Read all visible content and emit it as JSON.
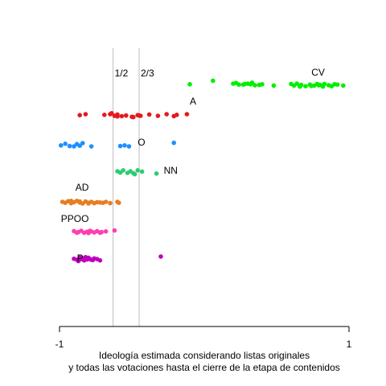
{
  "chart_data": {
    "type": "scatter",
    "title": "",
    "xlabel_lines": [
      "Ideología estimada considerando listas originales",
      "y todas las votaciones hasta el cierre de la etapa de contenidos"
    ],
    "ylabel": "",
    "xlim": [
      -1,
      1
    ],
    "x_ticks": [
      -1,
      1
    ],
    "x_tick_labels": [
      "-1",
      "1"
    ],
    "grid": false,
    "reference_lines": [
      {
        "x": -0.63,
        "label": "1/2",
        "color": "#bebebe"
      },
      {
        "x": -0.45,
        "label": "2/3",
        "color": "#bebebe"
      }
    ],
    "series": [
      {
        "name": "CV",
        "color": "#00ee00",
        "label_x": 0.74,
        "values": [
          -0.1,
          0.06,
          0.2,
          0.24,
          0.22,
          0.28,
          0.27,
          0.32,
          0.3,
          0.35,
          0.33,
          0.38,
          0.4,
          0.48,
          0.62,
          0.6,
          0.66,
          0.64,
          0.7,
          0.67,
          0.73,
          0.76,
          0.8,
          0.78,
          0.83,
          0.86,
          0.9,
          0.82,
          0.88,
          0.92,
          0.96,
          0.74,
          0.79
        ],
        "jitter": [
          0.2,
          -0.9,
          0.0,
          0.3,
          -0.2,
          0.1,
          0.3,
          0.2,
          0.0,
          0.5,
          -0.3,
          0.4,
          0.2,
          0.6,
          0.6,
          0.1,
          0.9,
          0.0,
          0.8,
          0.4,
          0.3,
          0.6,
          0.4,
          0.1,
          0.1,
          0.5,
          0.2,
          0.9,
          0.8,
          0.3,
          0.6,
          0.7,
          0.5
        ]
      },
      {
        "name": "A",
        "color": "#e41a1c",
        "label_x": -0.1,
        "values": [
          -0.86,
          -0.82,
          -0.69,
          -0.65,
          -0.62,
          -0.6,
          -0.57,
          -0.54,
          -0.64,
          -0.6,
          -0.5,
          -0.46,
          -0.44,
          -0.49,
          -0.38,
          -0.32,
          -0.26,
          -0.21,
          -0.19,
          -0.12,
          -0.45
        ],
        "jitter": [
          0.3,
          0.0,
          0.2,
          0.0,
          0.5,
          0.1,
          0.6,
          0.4,
          -0.3,
          0.7,
          0.8,
          0.3,
          0.5,
          0.9,
          0.1,
          0.5,
          0.0,
          0.6,
          0.2,
          0.0,
          0.4
        ]
      },
      {
        "name": "O",
        "color": "#1e90ff",
        "label_x": -0.46,
        "values": [
          -0.99,
          -0.96,
          -0.93,
          -0.88,
          -0.9,
          -0.86,
          -0.84,
          -0.78,
          -0.58,
          -0.55,
          -0.52,
          -0.21
        ],
        "jitter": [
          0.2,
          -0.3,
          0.4,
          -0.2,
          0.5,
          0.3,
          -0.5,
          0.5,
          0.4,
          0.2,
          0.5,
          -0.6
        ]
      },
      {
        "name": "NN",
        "color": "#2ecc71",
        "label_x": -0.28,
        "values": [
          -0.6,
          -0.56,
          -0.58,
          -0.53,
          -0.51,
          -0.49,
          -0.46,
          -0.43,
          -0.33,
          -0.48
        ],
        "jitter": [
          0.0,
          -0.3,
          0.4,
          0.5,
          0.0,
          0.6,
          -0.3,
          0.1,
          0.7,
          0.9
        ]
      },
      {
        "name": "AD",
        "color": "#e67e22",
        "label_x": -0.89,
        "values": [
          -0.98,
          -0.96,
          -0.94,
          -0.92,
          -0.9,
          -0.88,
          -0.86,
          -0.84,
          -0.82,
          -0.8,
          -0.78,
          -0.76,
          -0.74,
          -0.72,
          -0.7,
          -0.68,
          -0.65,
          -0.6,
          -0.59,
          -0.92,
          -0.86,
          -0.8
        ],
        "jitter": [
          0.0,
          0.3,
          -0.2,
          0.4,
          0.1,
          -0.3,
          0.2,
          0.5,
          -0.1,
          0.3,
          0.0,
          0.4,
          0.1,
          0.2,
          0.3,
          0.0,
          0.4,
          0.0,
          0.3,
          -0.3,
          -0.1,
          0.5
        ]
      },
      {
        "name": "PPOO",
        "color": "#ff3fb0",
        "label_x": -0.99,
        "values": [
          -0.9,
          -0.87,
          -0.85,
          -0.83,
          -0.81,
          -0.8,
          -0.78,
          -0.76,
          -0.74,
          -0.72,
          -0.71,
          -0.68,
          -0.62,
          -0.88,
          -0.79
        ],
        "jitter": [
          0.1,
          0.4,
          0.0,
          0.6,
          0.3,
          0.7,
          0.2,
          0.5,
          0.1,
          0.6,
          0.4,
          0.2,
          -0.1,
          0.6,
          0.0
        ]
      },
      {
        "name": "P",
        "color": "#c000c0",
        "label_x": -0.88,
        "values": [
          -0.9,
          -0.88,
          -0.86,
          -0.85,
          -0.84,
          -0.83,
          -0.81,
          -0.8,
          -0.79,
          -0.77,
          -0.76,
          -0.74,
          -0.72,
          -0.87,
          -0.82,
          -0.78,
          -0.3
        ],
        "jitter": [
          0.2,
          0.5,
          -0.2,
          0.3,
          0.0,
          0.7,
          0.4,
          -0.1,
          0.3,
          0.6,
          0.1,
          0.3,
          0.7,
          0.9,
          -0.3,
          0.5,
          -0.5
        ]
      }
    ]
  }
}
